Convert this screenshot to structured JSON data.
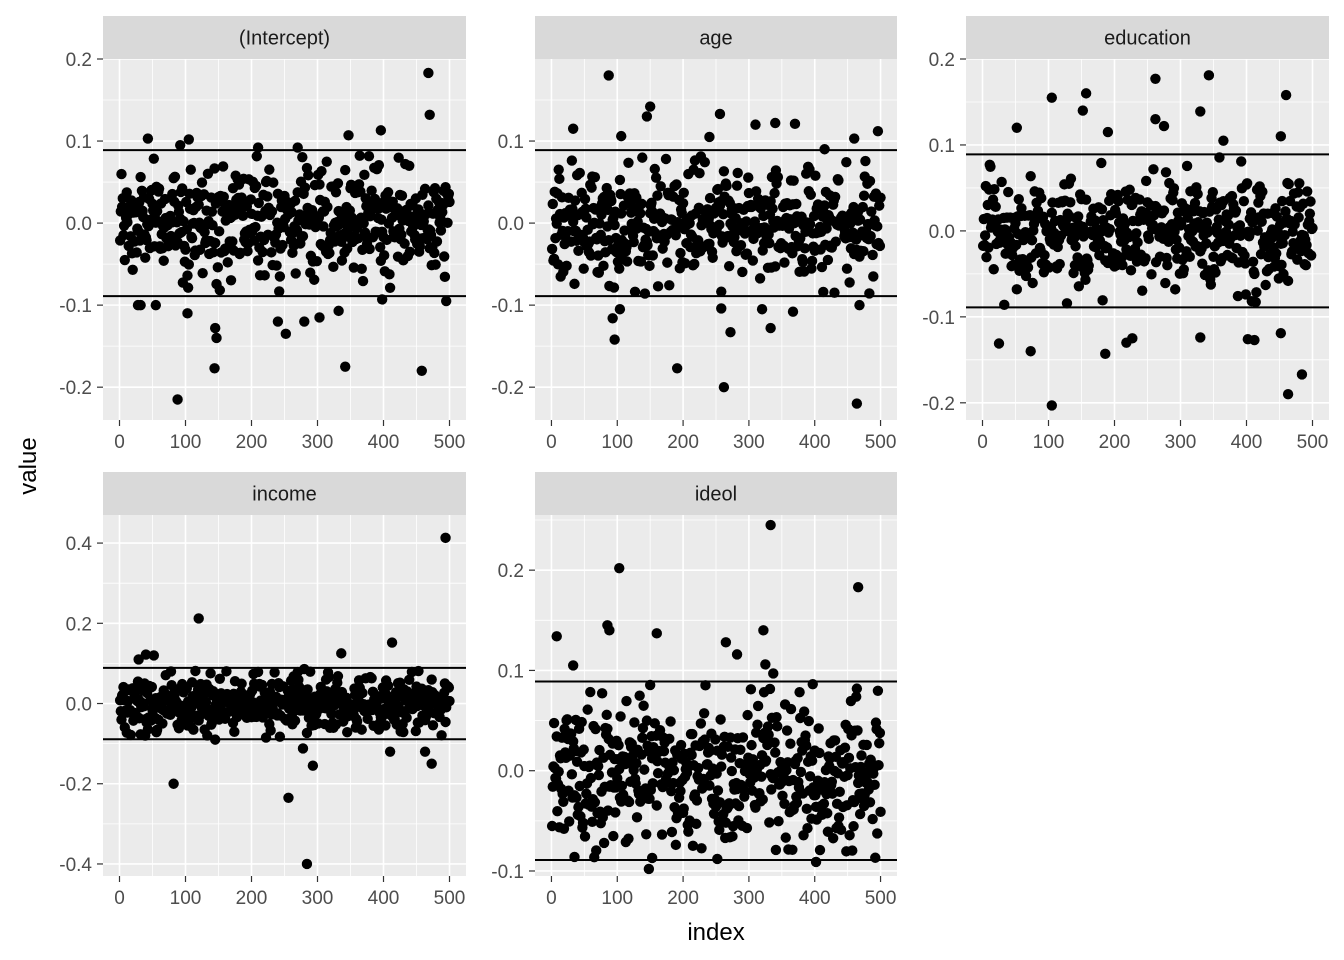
{
  "chart_data": {
    "type": "scatter",
    "xlabel": "index",
    "ylabel": "value",
    "x_ticks": [
      0,
      100,
      200,
      300,
      400,
      500
    ],
    "xlim": [
      -25,
      525
    ],
    "n_points": 500,
    "point_color": "#000000",
    "line_color": "#000000",
    "panel_background": "#ebebeb",
    "strip_background": "#d9d9d9",
    "grid": true,
    "panels": [
      {
        "title": "(Intercept)",
        "ylim": [
          -0.24,
          0.2
        ],
        "y_ticks": [
          -0.2,
          -0.1,
          0.0,
          0.1,
          0.2
        ],
        "y_tick_labels": [
          "-0.2",
          "-0.1",
          "0.0",
          "0.1",
          "0.2"
        ],
        "ref_lines": [
          0.089,
          -0.089
        ],
        "typical_sd": 0.032,
        "outliers": [
          [
            88,
            -0.215
          ],
          [
            468,
            0.183
          ],
          [
            470,
            0.132
          ],
          [
            144,
            -0.177
          ],
          [
            342,
            -0.175
          ],
          [
            458,
            -0.18
          ],
          [
            145,
            -0.128
          ],
          [
            147,
            -0.14
          ],
          [
            252,
            -0.135
          ],
          [
            240,
            -0.12
          ],
          [
            280,
            -0.12
          ],
          [
            303,
            -0.115
          ],
          [
            332,
            -0.107
          ],
          [
            103,
            -0.11
          ],
          [
            32,
            -0.1
          ],
          [
            28,
            -0.1
          ],
          [
            55,
            -0.1
          ],
          [
            495,
            -0.095
          ],
          [
            398,
            -0.093
          ],
          [
            105,
            0.102
          ],
          [
            43,
            0.103
          ],
          [
            347,
            0.107
          ],
          [
            396,
            0.113
          ],
          [
            92,
            0.095
          ],
          [
            210,
            0.092
          ],
          [
            270,
            0.092
          ]
        ]
      },
      {
        "title": "age",
        "ylim": [
          -0.24,
          0.2
        ],
        "y_ticks": [
          -0.2,
          -0.1,
          0.0,
          0.1
        ],
        "y_tick_labels": [
          "-0.2",
          "-0.1",
          "0.0",
          "0.1"
        ],
        "ref_lines": [
          0.089,
          -0.089
        ],
        "typical_sd": 0.033,
        "outliers": [
          [
            464,
            -0.22
          ],
          [
            262,
            -0.2
          ],
          [
            191,
            -0.177
          ],
          [
            96,
            -0.142
          ],
          [
            272,
            -0.133
          ],
          [
            333,
            -0.128
          ],
          [
            93,
            -0.116
          ],
          [
            104,
            -0.105
          ],
          [
            258,
            -0.104
          ],
          [
            320,
            -0.105
          ],
          [
            367,
            -0.108
          ],
          [
            468,
            -0.1
          ],
          [
            87,
            0.18
          ],
          [
            150,
            0.142
          ],
          [
            145,
            0.13
          ],
          [
            256,
            0.133
          ],
          [
            33,
            0.115
          ],
          [
            310,
            0.12
          ],
          [
            340,
            0.122
          ],
          [
            370,
            0.121
          ],
          [
            106,
            0.106
          ],
          [
            240,
            0.105
          ],
          [
            496,
            0.112
          ],
          [
            460,
            0.103
          ],
          [
            415,
            0.09
          ]
        ]
      },
      {
        "title": "education",
        "ylim": [
          -0.22,
          0.2
        ],
        "y_ticks": [
          -0.2,
          -0.1,
          0.0,
          0.1,
          0.2
        ],
        "y_tick_labels": [
          "-0.2",
          "-0.1",
          "0.0",
          "0.1",
          "0.2"
        ],
        "ref_lines": [
          0.089,
          -0.089
        ],
        "typical_sd": 0.032,
        "outliers": [
          [
            105,
            -0.203
          ],
          [
            463,
            -0.19
          ],
          [
            484,
            -0.167
          ],
          [
            186,
            -0.143
          ],
          [
            73,
            -0.14
          ],
          [
            25,
            -0.131
          ],
          [
            218,
            -0.13
          ],
          [
            227,
            -0.125
          ],
          [
            330,
            -0.124
          ],
          [
            402,
            -0.126
          ],
          [
            412,
            -0.127
          ],
          [
            452,
            -0.119
          ],
          [
            343,
            0.181
          ],
          [
            262,
            0.177
          ],
          [
            157,
            0.16
          ],
          [
            105,
            0.155
          ],
          [
            460,
            0.158
          ],
          [
            152,
            0.14
          ],
          [
            330,
            0.139
          ],
          [
            262,
            0.13
          ],
          [
            275,
            0.122
          ],
          [
            52,
            0.12
          ],
          [
            190,
            0.115
          ],
          [
            452,
            0.11
          ],
          [
            365,
            0.105
          ]
        ]
      },
      {
        "title": "income",
        "ylim": [
          -0.43,
          0.47
        ],
        "y_ticks": [
          -0.4,
          -0.2,
          0.0,
          0.2,
          0.4
        ],
        "y_tick_labels": [
          "-0.4",
          "-0.2",
          "0.0",
          "0.2",
          "0.4"
        ],
        "ref_lines": [
          0.089,
          -0.089
        ],
        "typical_sd": 0.035,
        "outliers": [
          [
            494,
            0.413
          ],
          [
            120,
            0.212
          ],
          [
            413,
            0.152
          ],
          [
            336,
            0.125
          ],
          [
            29,
            0.11
          ],
          [
            40,
            0.122
          ],
          [
            52,
            0.12
          ],
          [
            82,
            -0.2
          ],
          [
            284,
            -0.4
          ],
          [
            256,
            -0.235
          ],
          [
            293,
            -0.155
          ],
          [
            473,
            -0.15
          ],
          [
            278,
            -0.112
          ],
          [
            463,
            -0.12
          ],
          [
            410,
            -0.12
          ],
          [
            145,
            -0.09
          ]
        ]
      },
      {
        "title": "ideol",
        "ylim": [
          -0.105,
          0.255
        ],
        "y_ticks": [
          -0.1,
          0.0,
          0.1,
          0.2
        ],
        "y_tick_labels": [
          "-0.1",
          "0.0",
          "0.1",
          "0.2"
        ],
        "ref_lines": [
          0.089,
          -0.089
        ],
        "typical_sd": 0.035,
        "outliers": [
          [
            333,
            0.245
          ],
          [
            103,
            0.202
          ],
          [
            466,
            0.183
          ],
          [
            85,
            0.145
          ],
          [
            88,
            0.14
          ],
          [
            8,
            0.134
          ],
          [
            160,
            0.137
          ],
          [
            322,
            0.14
          ],
          [
            265,
            0.128
          ],
          [
            282,
            0.116
          ],
          [
            325,
            0.106
          ],
          [
            337,
            0.097
          ],
          [
            33,
            0.105
          ],
          [
            148,
            -0.098
          ],
          [
            402,
            -0.091
          ],
          [
            35,
            -0.086
          ],
          [
            252,
            -0.088
          ],
          [
            153,
            -0.087
          ]
        ]
      }
    ]
  }
}
